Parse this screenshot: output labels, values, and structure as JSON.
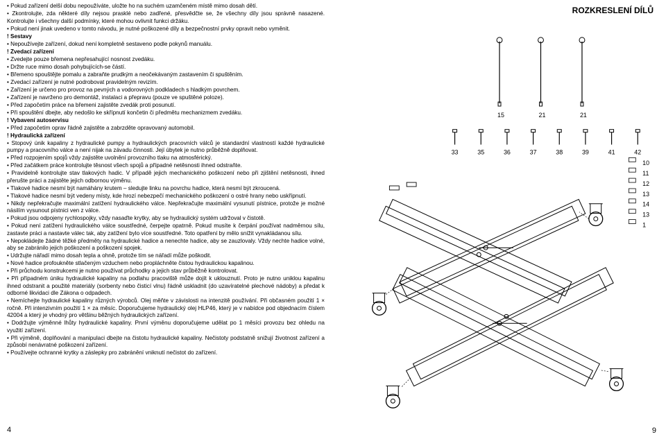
{
  "right_title": "ROZKRESLENÍ DÍLŮ",
  "page_left": "4",
  "page_right": "9",
  "lines": [
    {
      "t": "b",
      "text": "Pokud zařízení delší dobu nepoužíváte, uložte ho na suchém uzamčeném místě mimo dosah dětí."
    },
    {
      "t": "b",
      "text": "Zkontrolujte, zda některé díly nejsou prasklé nebo zadřené, přesvědčte se, že všechny díly jsou správně nasazené. Kontrolujte i všechny další podmínky, které mohou ovlivnit funkci držáku."
    },
    {
      "t": "b",
      "text": "Pokud není jinak uvedeno v tomto návodu, je nutné poškozené díly a bezpečnostní prvky opravit nebo vyměnit."
    },
    {
      "t": "h",
      "text": "! Sestavy"
    },
    {
      "t": "b",
      "text": "Nepoužívejte zařízení, dokud není kompletně sestaveno podle pokynů manuálu."
    },
    {
      "t": "h",
      "text": "! Zvedací zařízení"
    },
    {
      "t": "b",
      "text": "Zvedejte pouze břemena nepřesahující nosnost zvedáku."
    },
    {
      "t": "b",
      "text": "Držte ruce mimo dosah pohybujících-se částí."
    },
    {
      "t": "b",
      "text": "Břemeno spouštějte pomalu a zabraňte prudkým a neočekávaným zastavením či spuštěním."
    },
    {
      "t": "b",
      "text": "Zvedací zařízení je nutné podrobovat pravidelným revizím."
    },
    {
      "t": "b",
      "text": "Zařízení je určeno pro provoz na pevných a vodorovných podkladech s hladkým povrchem."
    },
    {
      "t": "b",
      "text": "Zařízení je navrženo pro demontáž, instalaci a přepravu (pouze ve spuštěné poloze)."
    },
    {
      "t": "b",
      "text": "Před započetím práce na břemeni zajistěte zvedák proti posunutí."
    },
    {
      "t": "b",
      "text": "Při spouštění dbejte, aby nedošlo ke skřípnutí končetin či předmětu mechanizmem zvedáku."
    },
    {
      "t": "h",
      "text": "! Vybavení autoservisu"
    },
    {
      "t": "b",
      "text": "Před započetím oprav řádně zajistěte a zabrzděte opravovaný automobil."
    },
    {
      "t": "h",
      "text": "! Hydraulická zařízení"
    },
    {
      "t": "b",
      "text": "Stopový únik kapaliny z hydraulické pumpy a hydraulických pracovních válců je standardní vlastností každé hydraulické pumpy a pracovního válce a není nijak na závadu činnosti. Její úbytek je nutno průběžně doplňovat."
    },
    {
      "t": "b",
      "text": "Před rozpojením spojů vždy zajistěte uvolnění provozního tlaku na atmosférický."
    },
    {
      "t": "b",
      "text": "Před začátkem práce kontrolujte těsnost všech spojů a případné netěsnosti ihned odstraňte."
    },
    {
      "t": "b",
      "text": "Pravidelně kontrolujte stav tlakových hadic. V případě jejich mechanického poškození nebo při zjištění netěsnosti, ihned přerušte práci a zajistěte jejich odbornou výměnu."
    },
    {
      "t": "b",
      "text": "Tlakové hadice nesmí být namáhány krutem – sledujte linku na povrchu hadice, která nesmí být zkroucená."
    },
    {
      "t": "b",
      "text": "Tlakové hadice nesmí být vedeny místy, kde hrozí nebezpečí mechanického poškození o ostré hrany nebo uskřípnutí."
    },
    {
      "t": "b",
      "text": "Nikdy nepřekračujte maximální zatížení hydraulického válce. Nepřekračujte maximální vysunutí pístnice, protože je možné násilím vysunout pístnici ven z válce."
    },
    {
      "t": "b",
      "text": "Pokud jsou odpojeny rychlospojky, vždy nasaďte krytky, aby se hydraulický systém udržoval v čistotě."
    },
    {
      "t": "b",
      "text": "Pokud není zatížení hydraulického válce soustředné, čerpejte opatrně. Pokud musíte k čerpání používat nadměrnou sílu, zastavte práci a nastavte válec tak, aby zatížení bylo více soustředné. Toto opatření by mělo snížit vynakládanou sílu."
    },
    {
      "t": "b",
      "text": "Nepokládejte žádné těžké předměty na hydraulické hadice a nenechte hadice, aby se zauzlovaly. Vždy nechte hadice volné, aby se zabránilo jejich poškození a poškození spojek."
    },
    {
      "t": "b",
      "text": "Udržujte nářadí mimo dosah tepla a ohně, protože tím se nářadí může poškodit."
    },
    {
      "t": "b",
      "text": "Nové hadice profoukněte stlačeným vzduchem nebo propláchněte čistou hydraulickou kapalinou."
    },
    {
      "t": "b",
      "text": "Při průchodu konstrukcemi je nutno používat průchodky a jejich stav průběžně kontrolovat."
    },
    {
      "t": "b",
      "text": "Při případném úniku hydraulické kapaliny na podlahu pracoviště může dojít k uklouznutí. Proto je nutno uniklou kapalinu ihned odstranit a použité materiály (sorbenty nebo čisticí vlnu) řádně uskladnit (do uzavíratelné plechové nádoby) a předat k odborné likvidaci dle Zákona o odpadech."
    },
    {
      "t": "b",
      "text": "Nemíchejte hydraulické kapaliny různých výrobců. Olej měňte v závislosti na intenzitě používání. Při občasném použití 1 × ročně. Při intenzivním použití 1 × za měsíc. Doporučujeme hydraulický olej HLP46, který je v nabídce pod objednacím číslem 42004 a který je vhodný pro většinu běžných hydraulických zařízení."
    },
    {
      "t": "b",
      "text": "Dodržujte výměnné lhůty hydraulické kapaliny. První výměnu doporučujeme udělat po 1 měsíci provozu bez ohledu na využití zařízení."
    },
    {
      "t": "b",
      "text": "Při výměně, doplňování a manipulaci dbejte na čistotu hydraulické kapaliny. Nečistoty podstatně snižují životnost zařízení a způsobí nenávratné poškození zařízení."
    },
    {
      "t": "b",
      "text": "Používejte ochranné krytky a záslepky pro zabránění vniknutí nečistot do zařízení."
    }
  ],
  "diagram": {
    "top_labels": [
      "15",
      "21",
      "21"
    ],
    "middle_labels": [
      "33",
      "35",
      "36",
      "37",
      "38",
      "39",
      "41",
      "42"
    ],
    "side_labels": [
      "10",
      "11",
      "12",
      "13",
      "14",
      "13",
      "1"
    ],
    "caster_count": 4
  },
  "colors": {
    "text": "#000000",
    "line": "#000000",
    "bg": "#ffffff"
  }
}
